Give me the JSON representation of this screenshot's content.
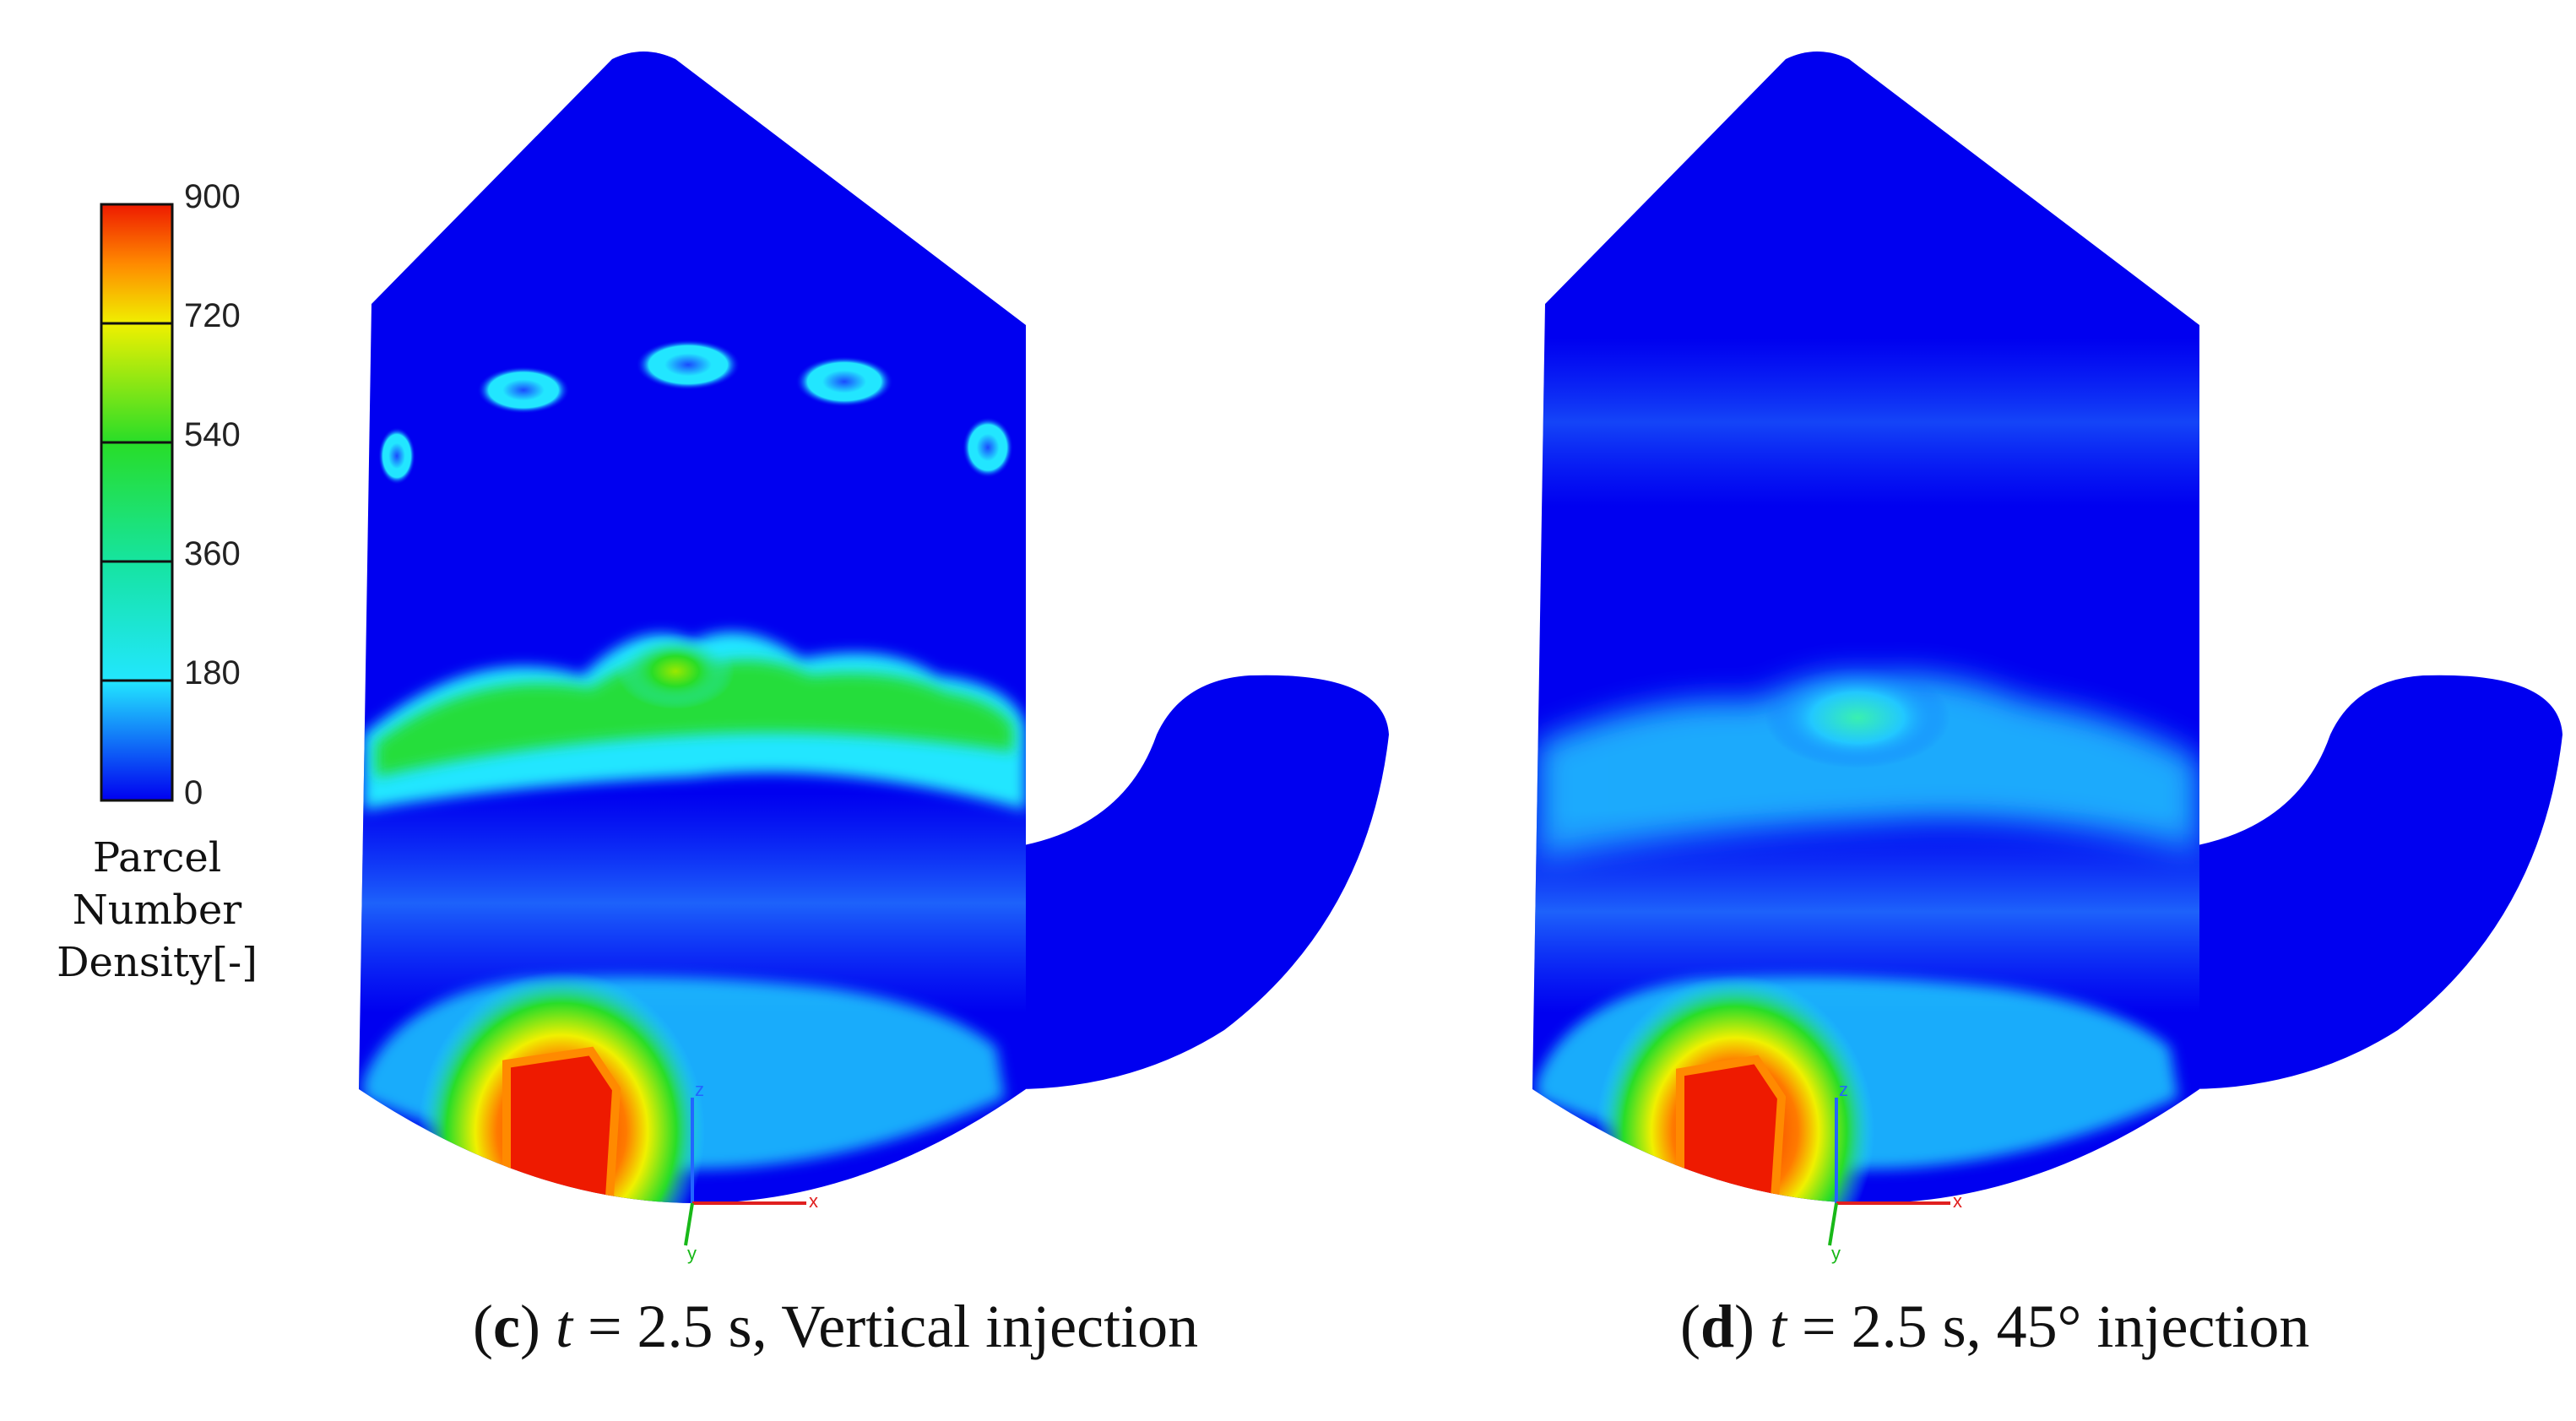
{
  "colorbar": {
    "ticks": [
      "900",
      "720",
      "540",
      "360",
      "180",
      "0"
    ],
    "title_lines": [
      "Parcel",
      "Number",
      "Density[-]"
    ],
    "min": 0,
    "max": 900
  },
  "colors": {
    "low": "#0000f0",
    "cyan": "#22e6ff",
    "green": "#28dd28",
    "yellow": "#f0f000",
    "red": "#ee1a00"
  },
  "panels": [
    {
      "letter": "c",
      "t_var": "t",
      "rest": " = 2.5 s, Vertical injection"
    },
    {
      "letter": "d",
      "t_var": "t",
      "rest": " = 2.5 s, 45° injection"
    }
  ],
  "axis_labels": {
    "z": "z",
    "x": "x",
    "y": "y"
  }
}
